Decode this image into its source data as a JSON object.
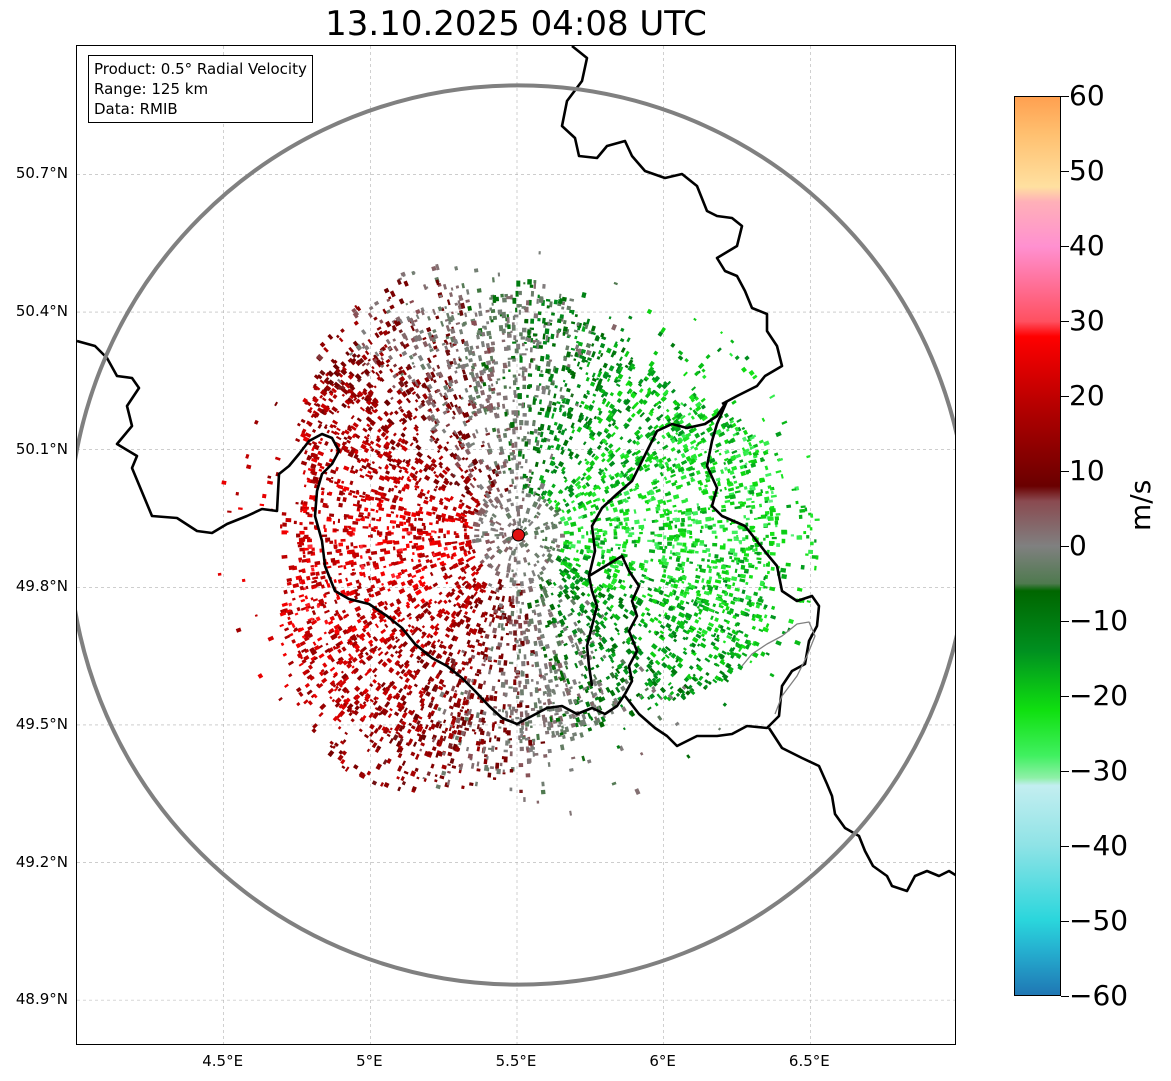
{
  "title": "13.10.2025 04:08 UTC",
  "info_box": {
    "lines": [
      "Product: 0.5° Radial Velocity",
      "Range: 125 km",
      "Data: RMIB"
    ]
  },
  "map": {
    "lat_labels": [
      "50.7°N",
      "50.4°N",
      "50.1°N",
      "49.8°N",
      "49.5°N",
      "49.2°N",
      "48.9°N"
    ],
    "lat_values": [
      50.7,
      50.4,
      50.1,
      49.8,
      49.5,
      49.2,
      48.9
    ],
    "lon_labels": [
      "4.5°E",
      "5°E",
      "5.5°E",
      "6°E",
      "6.5°E"
    ],
    "lon_values": [
      4.5,
      5.0,
      5.5,
      6.0,
      6.5
    ],
    "extent": {
      "lon_min": 4.0,
      "lon_max": 7.0,
      "lat_min": 48.8,
      "lat_max": 50.98
    },
    "radar_site": {
      "lon": 5.505,
      "lat": 49.914
    },
    "range_km": 125,
    "colors": {
      "range_ring": "#808080",
      "grid": "#b0b0b0",
      "border": "#000000",
      "radar_marker": "#e01010"
    }
  },
  "colorbar": {
    "unit": "m/s",
    "min": -60,
    "max": 60,
    "tick_labels": [
      "60",
      "50",
      "40",
      "30",
      "20",
      "10",
      "0",
      "−10",
      "−20",
      "−30",
      "−40",
      "−50",
      "−60"
    ],
    "tick_values": [
      60,
      50,
      40,
      30,
      20,
      10,
      0,
      -10,
      -20,
      -30,
      -40,
      -50,
      -60
    ],
    "stops": [
      {
        "v": -60,
        "c": "#1f77b4"
      },
      {
        "v": -54,
        "c": "#25b0d0"
      },
      {
        "v": -50,
        "c": "#2ad6dc"
      },
      {
        "v": -40,
        "c": "#8fe3e6"
      },
      {
        "v": -32,
        "c": "#c3eef0"
      },
      {
        "v": -31,
        "c": "#8ff0a8"
      },
      {
        "v": -28,
        "c": "#40f060"
      },
      {
        "v": -22,
        "c": "#10e010"
      },
      {
        "v": -14,
        "c": "#009020"
      },
      {
        "v": -6,
        "c": "#006600"
      },
      {
        "v": -5,
        "c": "#4f7a4f"
      },
      {
        "v": 0,
        "c": "#808080"
      },
      {
        "v": 6,
        "c": "#8a4a50"
      },
      {
        "v": 8,
        "c": "#6a0000"
      },
      {
        "v": 18,
        "c": "#b00000"
      },
      {
        "v": 28,
        "c": "#ff0000"
      },
      {
        "v": 30,
        "c": "#ff5060"
      },
      {
        "v": 40,
        "c": "#ff90d0"
      },
      {
        "v": 46,
        "c": "#ffb0b8"
      },
      {
        "v": 48,
        "c": "#ffe0a0"
      },
      {
        "v": 55,
        "c": "#ffc070"
      },
      {
        "v": 60,
        "c": "#ffa050"
      }
    ]
  }
}
